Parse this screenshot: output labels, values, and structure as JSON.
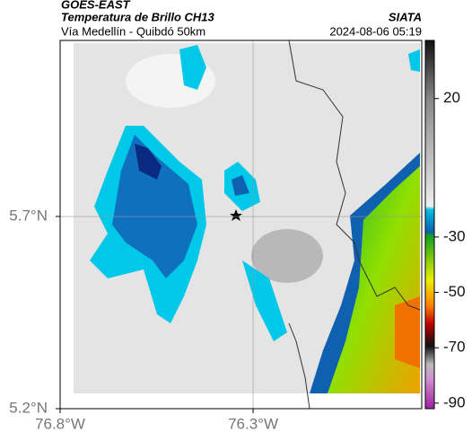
{
  "header": {
    "satellite": "GOES-EAST",
    "title": "Temperatura de Brillo CH13",
    "subtitle": "Vía Medellín - Quibdó 50km",
    "source": "SIATA",
    "timestamp": "2024-08-06 05:19"
  },
  "map": {
    "lonlim": [
      -76.8,
      -75.863
    ],
    "latlim": [
      5.2,
      6.158
    ],
    "lonticks": [
      {
        "value": -76.8,
        "label": "76.8°W"
      },
      {
        "value": -76.3,
        "label": "76.3°W"
      }
    ],
    "latticks": [
      {
        "value": 5.2,
        "label": "5.2°N"
      },
      {
        "value": 5.7,
        "label": "5.7°N"
      }
    ]
  },
  "colorbar": {
    "lim": [
      -92,
      41
    ],
    "ticks": [
      20,
      -30,
      -50,
      -70,
      -90
    ]
  }
}
